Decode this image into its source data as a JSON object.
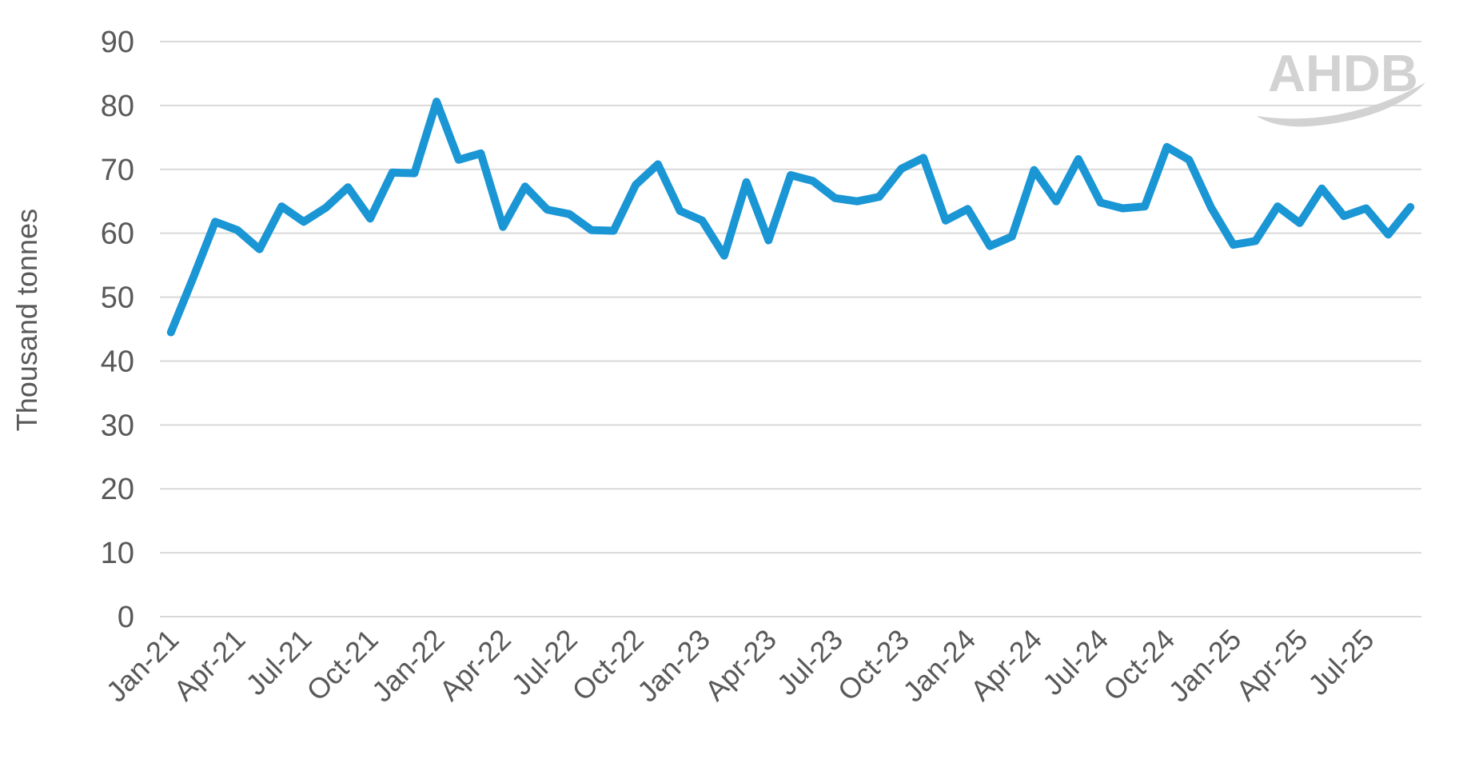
{
  "watermark": {
    "text": "AHDB"
  },
  "chart_data": {
    "type": "line",
    "title": "",
    "xlabel": "",
    "ylabel": "Thousand tonnes",
    "ylim": [
      0,
      90
    ],
    "y_ticks": [
      0,
      10,
      20,
      30,
      40,
      50,
      60,
      70,
      80,
      90
    ],
    "grid": "horizontal",
    "legend": "none",
    "x_tick_every": 3,
    "x_tick_labels": [
      "Jan-21",
      "Apr-21",
      "Jul-21",
      "Oct-21",
      "Jan-22",
      "Apr-22",
      "Jul-22",
      "Oct-22",
      "Jan-23",
      "Apr-23",
      "Jul-23",
      "Oct-23",
      "Jan-24",
      "Apr-24",
      "Jul-24",
      "Oct-24",
      "Jan-25",
      "Apr-25",
      "Jul-25"
    ],
    "categories": [
      "Jan-21",
      "Feb-21",
      "Mar-21",
      "Apr-21",
      "May-21",
      "Jun-21",
      "Jul-21",
      "Aug-21",
      "Sep-21",
      "Oct-21",
      "Nov-21",
      "Dec-21",
      "Jan-22",
      "Feb-22",
      "Mar-22",
      "Apr-22",
      "May-22",
      "Jun-22",
      "Jul-22",
      "Aug-22",
      "Sep-22",
      "Oct-22",
      "Nov-22",
      "Dec-22",
      "Jan-23",
      "Feb-23",
      "Mar-23",
      "Apr-23",
      "May-23",
      "Jun-23",
      "Jul-23",
      "Aug-23",
      "Sep-23",
      "Oct-23",
      "Nov-23",
      "Dec-23",
      "Jan-24",
      "Feb-24",
      "Mar-24",
      "Apr-24",
      "May-24",
      "Jun-24",
      "Jul-24",
      "Aug-24",
      "Sep-24",
      "Oct-24",
      "Nov-24",
      "Dec-24",
      "Jan-25",
      "Feb-25",
      "Mar-25",
      "Apr-25",
      "May-25",
      "Jun-25",
      "Jul-25",
      "Aug-25",
      "Sep-25"
    ],
    "series": [
      {
        "name": "Thousand tonnes",
        "color": "#1a96d5",
        "values": [
          44.5,
          53.0,
          61.8,
          60.5,
          57.5,
          64.2,
          61.8,
          64.0,
          67.2,
          62.3,
          69.5,
          69.4,
          80.6,
          71.5,
          72.5,
          61.0,
          67.3,
          63.7,
          63.0,
          60.5,
          60.4,
          67.6,
          70.8,
          63.5,
          62.0,
          56.5,
          68.0,
          58.9,
          69.1,
          68.2,
          65.5,
          65.0,
          65.7,
          70.1,
          71.8,
          62.0,
          63.8,
          58.0,
          59.5,
          69.9,
          65.0,
          71.6,
          64.8,
          63.9,
          64.2,
          73.5,
          71.5,
          64.0,
          58.2,
          58.8,
          64.2,
          61.6,
          67.0,
          62.7,
          63.9,
          59.8,
          64.1
        ]
      }
    ],
    "colors": {
      "line": "#1a96d5",
      "gridline": "#d9d9d9",
      "tick_text": "#595959",
      "axis_title_text": "#595959",
      "watermark": "#d2d2d2"
    }
  }
}
